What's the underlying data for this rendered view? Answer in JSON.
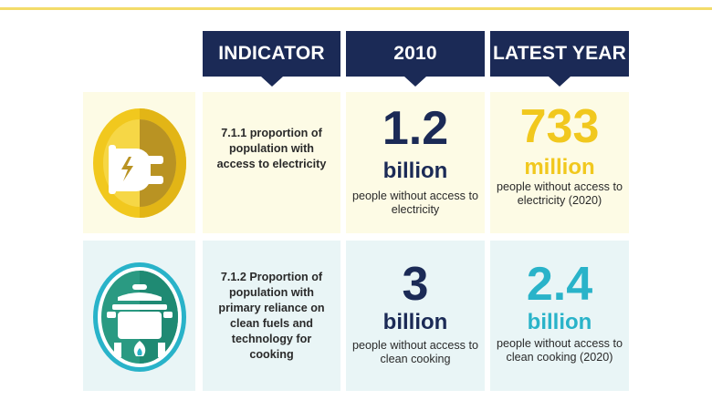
{
  "headers": {
    "indicator": "INDICATOR",
    "year_2010": "2010",
    "latest_year": "LATEST YEAR"
  },
  "rows": [
    {
      "icon": "electric-plug-icon",
      "indicator": "7.1.1 proportion of population with access to electricity",
      "val2010": {
        "number": "1.2",
        "unit": "billion",
        "desc": "people without access to electricity"
      },
      "latest": {
        "number": "733",
        "unit": "million",
        "desc": "people without access to electricity (2020)"
      }
    },
    {
      "icon": "cooking-pot-icon",
      "indicator": "7.1.2 Proportion of population with primary reliance on clean fuels and technology for cooking",
      "val2010": {
        "number": "3",
        "unit": "billion",
        "desc": "people without access to clean cooking"
      },
      "latest": {
        "number": "2.4",
        "unit": "billion",
        "desc": "people without access to clean cooking (2020)"
      }
    }
  ],
  "colors": {
    "navy": "#1b2a56",
    "yellow": "#f1c81e",
    "teal": "#29b3c9",
    "row1_bg": "#fdfbe5",
    "row2_bg": "#e9f5f6"
  }
}
